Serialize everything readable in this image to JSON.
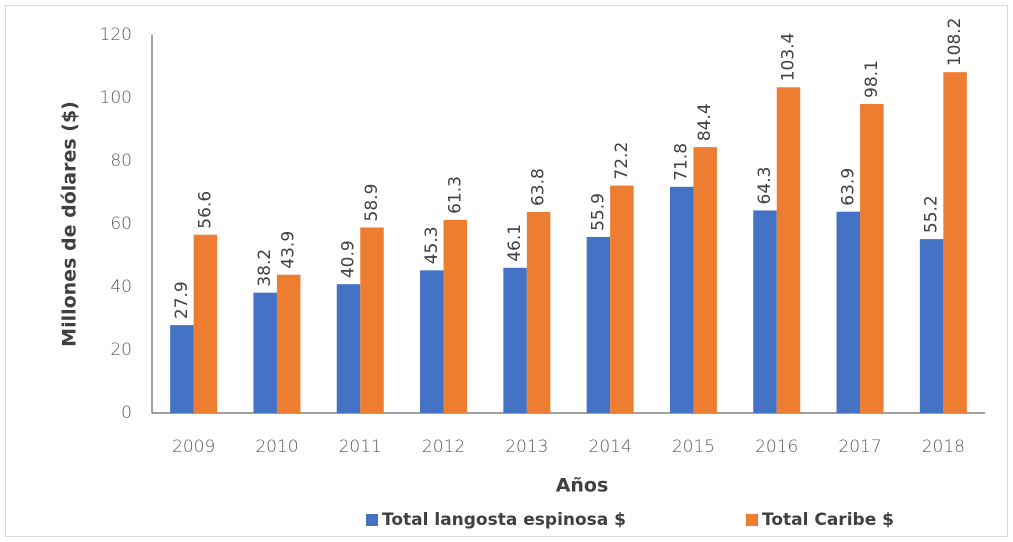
{
  "chart_data": {
    "type": "bar",
    "x_label": "Años",
    "y_label": "Millones de dólares ($)",
    "categories": [
      "2009",
      "2010",
      "2011",
      "2012",
      "2013",
      "2014",
      "2015",
      "2016",
      "2017",
      "2018"
    ],
    "series": [
      {
        "name": "Total langosta espinosa $",
        "color": "#4472c4",
        "values": [
          27.9,
          38.2,
          40.9,
          45.3,
          46.1,
          55.9,
          71.8,
          64.3,
          63.9,
          55.2
        ]
      },
      {
        "name": "Total Caribe $",
        "color": "#ed7d31",
        "values": [
          56.6,
          43.9,
          58.9,
          61.3,
          63.8,
          72.2,
          84.4,
          103.4,
          98.1,
          108.2
        ]
      }
    ],
    "ylim": [
      0,
      120
    ],
    "yticks": [
      0,
      20,
      40,
      60,
      80,
      100,
      120
    ],
    "grid": false,
    "legend": "bottom"
  }
}
